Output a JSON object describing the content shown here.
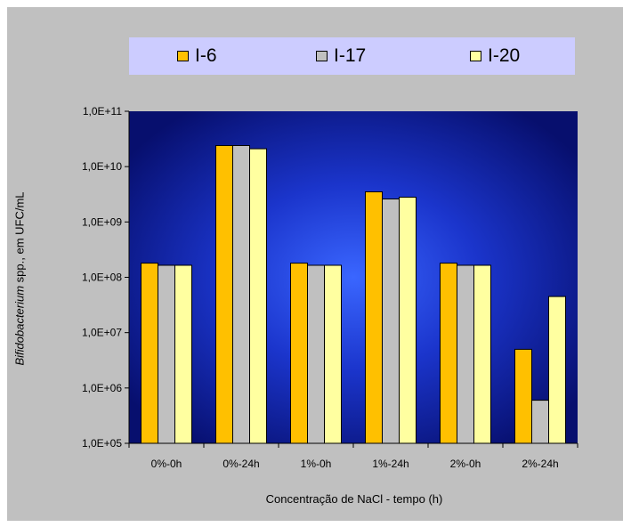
{
  "chart_data": {
    "type": "bar",
    "yscale": "log",
    "ylim": [
      100000,
      100000000000
    ],
    "ytick_labels": [
      "1,0E+05",
      "1,0E+06",
      "1,0E+07",
      "1,0E+08",
      "1,0E+09",
      "1,0E+10",
      "1,0E+11"
    ],
    "categories": [
      "0%-0h",
      "0%-24h",
      "1%-0h",
      "1%-24h",
      "2%-0h",
      "2%-24h"
    ],
    "xlabel": "Concentração de NaCl - tempo (h)",
    "ylabel_italic": "Bifidobacterium",
    "ylabel_rest": " spp., em UFC/mL",
    "legend_position": "top",
    "grid": false,
    "series": [
      {
        "name": "I-6",
        "color": "#ffc000",
        "values": [
          180000000,
          24000000000,
          180000000,
          3500000000,
          180000000,
          5000000
        ]
      },
      {
        "name": "I-17",
        "color": "#c0c0c0",
        "values": [
          165000000,
          24000000000,
          165000000,
          2600000000,
          165000000,
          600000
        ]
      },
      {
        "name": "I-20",
        "color": "#ffffa0",
        "values": [
          165000000,
          21000000000,
          165000000,
          2800000000,
          165000000,
          45000000
        ]
      }
    ]
  }
}
